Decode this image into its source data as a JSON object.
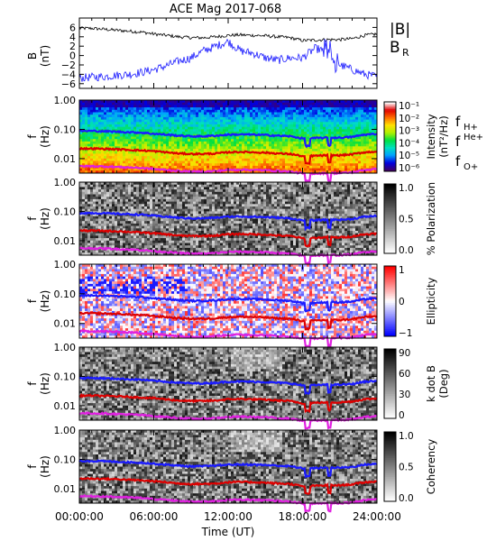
{
  "chart_data": [
    {
      "type": "line",
      "title": "ACE Mag 2017-068",
      "ylabel_lines": [
        "B",
        "(nT)"
      ],
      "ylim": [
        -7,
        8
      ],
      "yticks": [
        -6,
        -4,
        -2,
        0,
        2,
        4,
        6
      ],
      "xlim_hours": [
        0,
        24
      ],
      "series": [
        {
          "name": "|B|",
          "color": "#000000",
          "x_hours": [
            0,
            1,
            2,
            3,
            4,
            5,
            6,
            7,
            8,
            9,
            10,
            11,
            12,
            13,
            14,
            15,
            16,
            17,
            18,
            19,
            20,
            21,
            22,
            23,
            24
          ],
          "values": [
            5.8,
            5.8,
            5.6,
            5.4,
            5.2,
            5.0,
            4.6,
            4.3,
            4.0,
            3.8,
            3.8,
            4.0,
            4.3,
            4.4,
            4.3,
            4.2,
            4.0,
            3.8,
            3.2,
            3.3,
            3.4,
            3.4,
            3.6,
            4.3,
            4.6
          ]
        },
        {
          "name": "B",
          "subscript": "R",
          "color": "#1a1aff",
          "x_hours": [
            0,
            1,
            2,
            3,
            4,
            5,
            6,
            7,
            8,
            9,
            10,
            11,
            12,
            13,
            14,
            15,
            16,
            17,
            18,
            19,
            20,
            21,
            22,
            23,
            24
          ],
          "values": [
            -4.8,
            -4.6,
            -4.5,
            -4.2,
            -4.0,
            -3.6,
            -3.0,
            -2.2,
            -1.2,
            -0.5,
            1.0,
            2.0,
            3.0,
            1.0,
            0.5,
            -0.5,
            -1.0,
            -0.5,
            -0.5,
            1.5,
            1.0,
            -2.0,
            -3.0,
            -4.0,
            -4.5
          ]
        }
      ]
    },
    {
      "type": "heatmap",
      "ylabel_lines": [
        "f",
        "(Hz)"
      ],
      "yticks": [
        "1.00",
        "0.10",
        "0.01"
      ],
      "colorbar": {
        "label_lines": [
          "Intensity",
          "(nT²/Hz)"
        ],
        "scale": "log",
        "ticks": [
          "10⁻¹",
          "10⁻²",
          "10⁻³",
          "10⁻⁴",
          "10⁻⁵",
          "10⁻⁶"
        ],
        "colormap": [
          "#40006a",
          "#0000e0",
          "#00a0ff",
          "#00e0c0",
          "#00e040",
          "#b0f000",
          "#ffe000",
          "#ff7000",
          "#e00000",
          "#ffffff"
        ]
      },
      "legend": [
        {
          "label": "f",
          "subscript": "H+",
          "color": "#1a1aff"
        },
        {
          "label": "f",
          "superscript": "He+",
          "color": "#dd0000"
        },
        {
          "label": "f",
          "subscript": "O+",
          "color": "#e020e0"
        }
      ]
    },
    {
      "type": "heatmap",
      "ylabel_lines": [
        "f",
        "(Hz)"
      ],
      "yticks": [
        "1.00",
        "0.10",
        "0.01"
      ],
      "colorbar": {
        "label_lines": [
          "% Polarization"
        ],
        "scale": "linear",
        "ticks": [
          "1.0",
          "0.5",
          "0.0"
        ],
        "colormap": [
          "#ffffff",
          "#000000"
        ]
      }
    },
    {
      "type": "heatmap",
      "ylabel_lines": [
        "f",
        "(Hz)"
      ],
      "yticks": [
        "1.00",
        "0.10",
        "0.01"
      ],
      "colorbar": {
        "label_lines": [
          "Ellipticity"
        ],
        "scale": "linear",
        "ticks": [
          "1",
          "0",
          "−1"
        ],
        "colormap": [
          "#0000ff",
          "#ffffff",
          "#ff0000"
        ]
      }
    },
    {
      "type": "heatmap",
      "ylabel_lines": [
        "f",
        "(Hz)"
      ],
      "yticks": [
        "1.00",
        "0.10",
        "0.01"
      ],
      "colorbar": {
        "label_lines": [
          "k dot B",
          "(Deg)"
        ],
        "scale": "linear",
        "ticks": [
          "90",
          "60",
          "30",
          "0"
        ],
        "colormap": [
          "#ffffff",
          "#000000"
        ]
      }
    },
    {
      "type": "heatmap",
      "ylabel_lines": [
        "f",
        "(Hz)"
      ],
      "yticks": [
        "1.00",
        "0.10",
        "0.01"
      ],
      "colorbar": {
        "label_lines": [
          "Coherency"
        ],
        "scale": "linear",
        "ticks": [
          "1.0",
          "0.5",
          "0.0"
        ],
        "colormap": [
          "#ffffff",
          "#000000"
        ]
      }
    }
  ],
  "gyrofrequency_lines": {
    "x_hours": [
      0,
      1,
      2,
      3,
      4,
      5,
      6,
      7,
      8,
      9,
      10,
      11,
      12,
      13,
      14,
      15,
      16,
      17,
      18,
      19,
      20,
      21,
      22,
      23,
      24
    ],
    "f_H_Hz": [
      0.088,
      0.088,
      0.086,
      0.083,
      0.08,
      0.077,
      0.071,
      0.066,
      0.061,
      0.058,
      0.058,
      0.061,
      0.066,
      0.067,
      0.066,
      0.064,
      0.061,
      0.058,
      0.049,
      0.05,
      0.052,
      0.052,
      0.055,
      0.066,
      0.07
    ],
    "f_He_Hz": [
      0.022,
      0.022,
      0.0215,
      0.021,
      0.02,
      0.019,
      0.018,
      0.0165,
      0.015,
      0.0145,
      0.0145,
      0.015,
      0.0165,
      0.017,
      0.0165,
      0.016,
      0.015,
      0.0145,
      0.012,
      0.0125,
      0.013,
      0.013,
      0.014,
      0.0165,
      0.0175
    ],
    "f_O_Hz": [
      0.0055,
      0.0055,
      0.0054,
      0.0052,
      0.005,
      0.0048,
      0.0044,
      0.0041,
      0.0038,
      0.0036,
      0.0036,
      0.0038,
      0.0041,
      0.0042,
      0.0041,
      0.004,
      0.0038,
      0.0036,
      0.0031,
      0.0031,
      0.0032,
      0.0032,
      0.0034,
      0.0041,
      0.0044
    ]
  },
  "time_axis": {
    "tick_labels": [
      "00:00:00",
      "06:00:00",
      "12:00:00",
      "18:00:00",
      "24:00:00"
    ],
    "label": "Time (UT)"
  }
}
